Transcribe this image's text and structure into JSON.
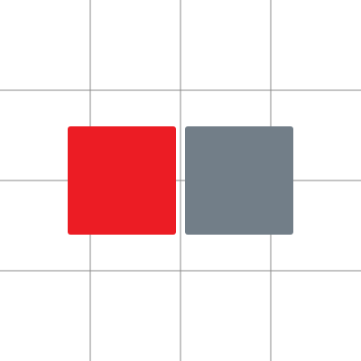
{
  "board": {
    "rows": 4,
    "cols": 4,
    "grid_line_color": "#8a8a8a",
    "background_color": "#ffffff"
  },
  "tiles": [
    {
      "name": "tile-red",
      "color": "#ec1c24"
    },
    {
      "name": "tile-gray",
      "color": "#727e88"
    }
  ]
}
